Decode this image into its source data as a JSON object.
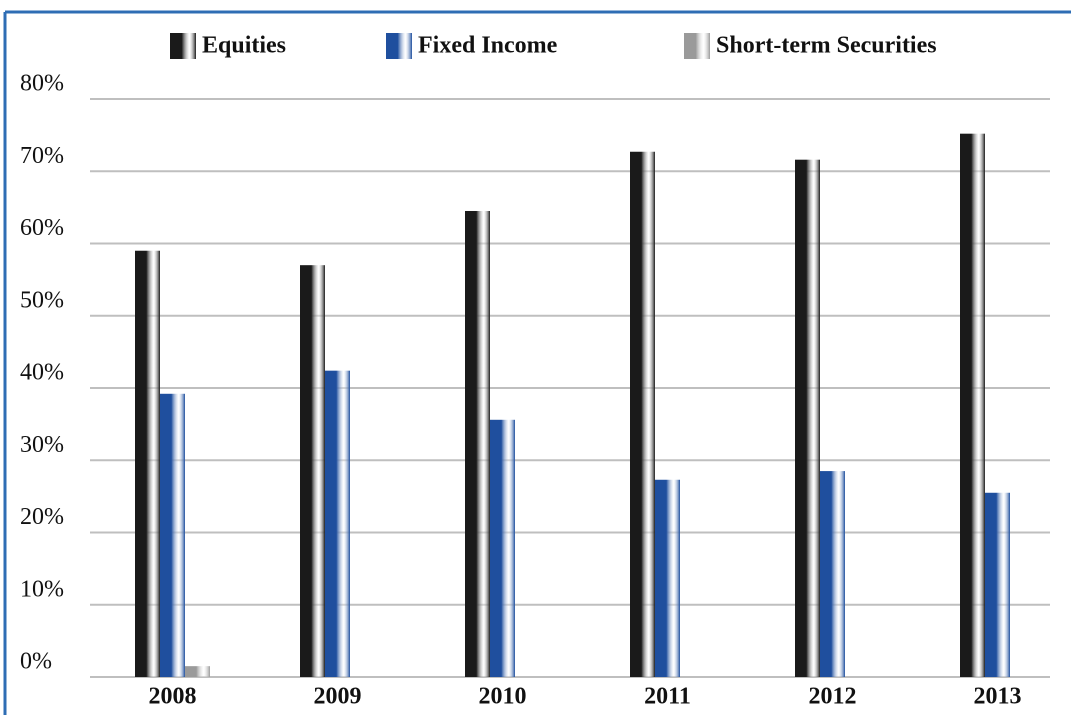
{
  "chart_data": {
    "type": "bar",
    "categories": [
      "2008",
      "2009",
      "2010",
      "2011",
      "2012",
      "2013"
    ],
    "series": [
      {
        "name": "Equities",
        "color": "#1a1a1a",
        "values": [
          59,
          57,
          64.5,
          72.7,
          71.6,
          75.2
        ]
      },
      {
        "name": "Fixed Income",
        "color": "#1f4f9e",
        "values": [
          39.2,
          42.4,
          35.6,
          27.3,
          28.5,
          25.5
        ]
      },
      {
        "name": "Short-term Securities",
        "color": "#9a9a9a",
        "values": [
          1.5,
          0,
          0,
          0,
          0,
          0
        ]
      }
    ],
    "ylim": [
      0,
      80
    ],
    "yticks": [
      {
        "value": 0,
        "label": "0%"
      },
      {
        "value": 10,
        "label": "10%"
      },
      {
        "value": 20,
        "label": "20%"
      },
      {
        "value": 30,
        "label": "30%"
      },
      {
        "value": 40,
        "label": "40%"
      },
      {
        "value": 50,
        "label": "50%"
      },
      {
        "value": 60,
        "label": "60%"
      },
      {
        "value": 70,
        "label": "70%"
      },
      {
        "value": 80,
        "label": "80%"
      }
    ],
    "grid": true,
    "legend": "top"
  }
}
